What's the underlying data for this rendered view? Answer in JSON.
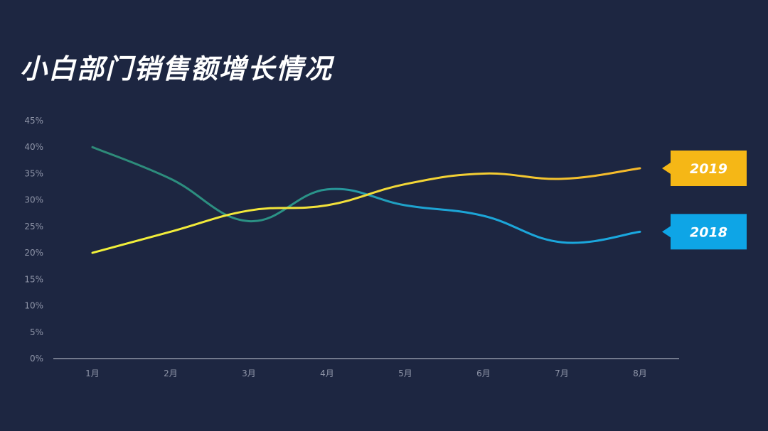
{
  "title": "小白部门销售额增长情况",
  "chart_data": {
    "type": "line",
    "categories": [
      "1月",
      "2月",
      "3月",
      "4月",
      "5月",
      "6月",
      "7月",
      "8月"
    ],
    "series": [
      {
        "name": "2018",
        "values": [
          40,
          34,
          26,
          32,
          29,
          27,
          22,
          24
        ]
      },
      {
        "name": "2019",
        "values": [
          20,
          24,
          28,
          29,
          33,
          35,
          34,
          36
        ]
      }
    ],
    "ylim": [
      0,
      45
    ],
    "yticks": [
      "0%",
      "5%",
      "10%",
      "15%",
      "20%",
      "25%",
      "30%",
      "35%",
      "40%",
      "45%"
    ],
    "grid": false,
    "legend": "right-end-labels",
    "colors": {
      "2018_start": "#2e8a78",
      "2018_end": "#1aa8e0",
      "2019_start": "#f2f23a",
      "2019_end": "#f5b82a",
      "label_2019_bg": "#f5b716",
      "label_2018_bg": "#0ea5e6",
      "axis": "#c8ccd6"
    }
  }
}
